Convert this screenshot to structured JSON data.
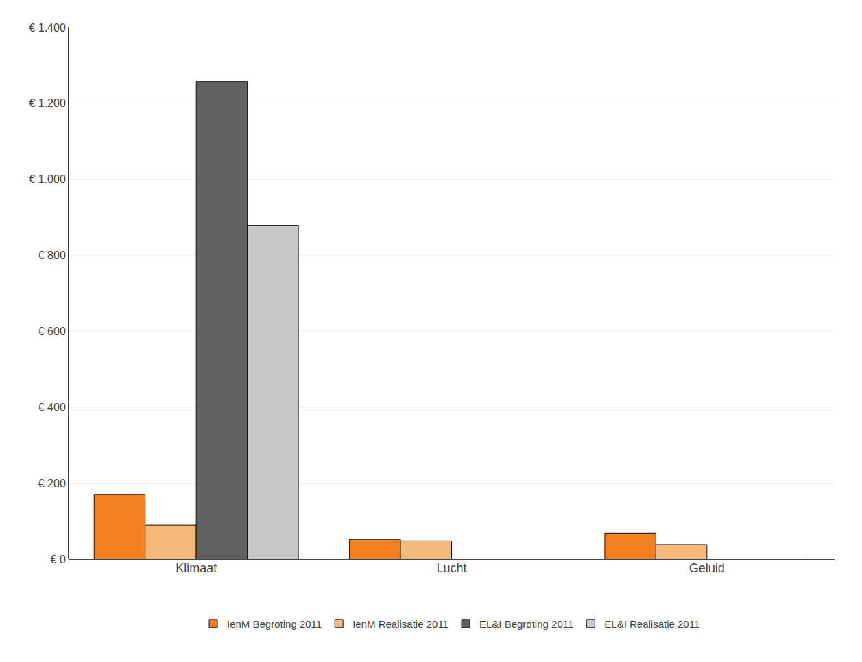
{
  "chart_data": {
    "type": "bar",
    "categories": [
      "Klimaat",
      "Lucht",
      "Geluid"
    ],
    "series": [
      {
        "name": "IenM Begroting 2011",
        "color": "#F28020",
        "values": [
          170,
          52,
          68
        ]
      },
      {
        "name": "IenM Realisatie 2011",
        "color": "#F5B97A",
        "values": [
          90,
          48,
          38
        ]
      },
      {
        "name": "EL&I Begroting 2011",
        "color": "#606060",
        "values": [
          1258,
          0,
          0
        ]
      },
      {
        "name": "EL&I Realisatie 2011",
        "color": "#C8C8C8",
        "values": [
          878,
          0,
          0
        ]
      }
    ],
    "ylim": [
      0,
      1400
    ],
    "yticks": [
      {
        "value": 0,
        "label": "€ 0"
      },
      {
        "value": 200,
        "label": "€ 200"
      },
      {
        "value": 400,
        "label": "€ 400"
      },
      {
        "value": 600,
        "label": "€ 600"
      },
      {
        "value": 800,
        "label": "€ 800"
      },
      {
        "value": 1000,
        "label": "€ 1.000"
      },
      {
        "value": 1200,
        "label": "€ 1.200"
      },
      {
        "value": 1400,
        "label": "€ 1.400"
      }
    ],
    "grid": true,
    "legend": "bottom"
  }
}
